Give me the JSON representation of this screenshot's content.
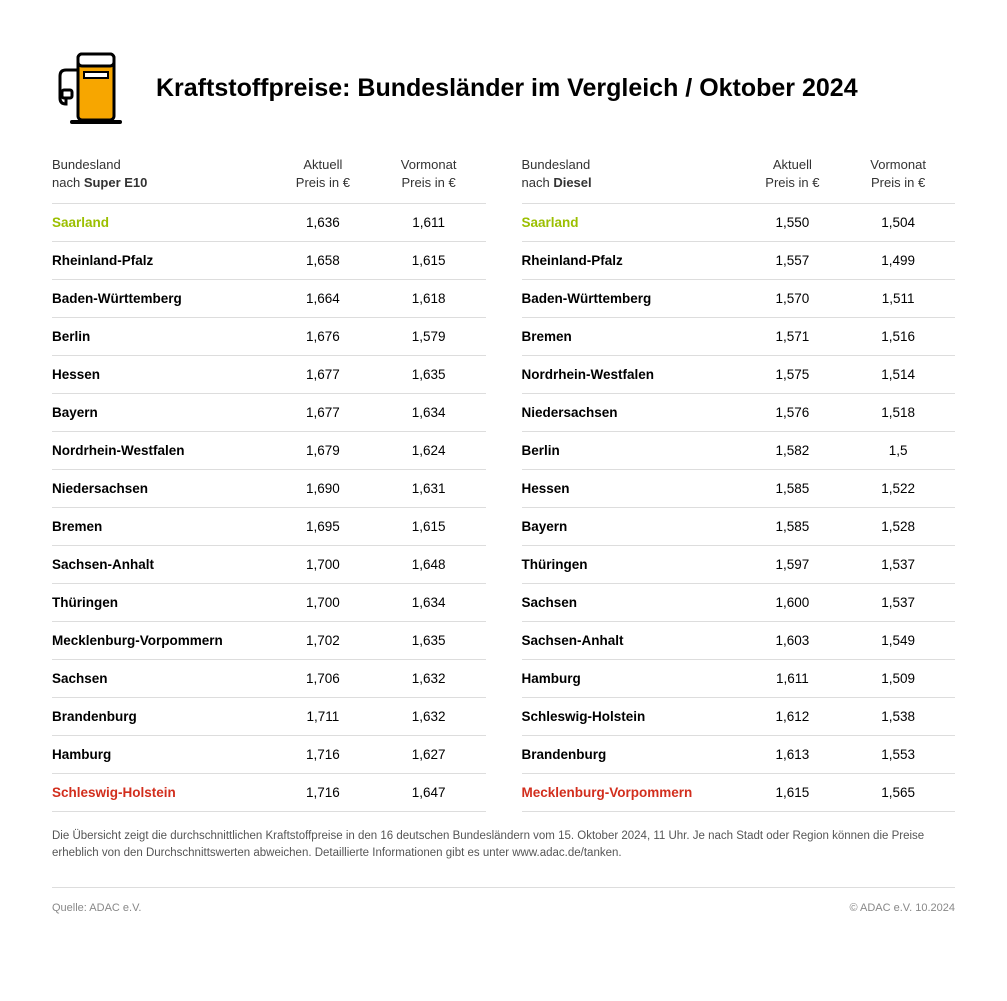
{
  "title": "Kraftstoffpreise: Bundesländer im Vergleich / Oktober 2024",
  "colors": {
    "best": "#9bbf00",
    "worst": "#d22e1d",
    "icon_fill": "#f7a600",
    "icon_stroke": "#000000",
    "row_border": "#dddddd",
    "text": "#000000",
    "muted": "#888888"
  },
  "columns": {
    "state_label_line1": "Bundesland",
    "state_label_line2_prefix": "nach ",
    "current_line1": "Aktuell",
    "current_line2": "Preis in €",
    "prev_line1": "Vormonat",
    "prev_line2": "Preis in €"
  },
  "tables": [
    {
      "fuel": "Super E10",
      "rows": [
        {
          "state": "Saarland",
          "current": "1,636",
          "prev": "1,611",
          "flag": "best"
        },
        {
          "state": "Rheinland-Pfalz",
          "current": "1,658",
          "prev": "1,615",
          "flag": ""
        },
        {
          "state": "Baden-Württemberg",
          "current": "1,664",
          "prev": "1,618",
          "flag": ""
        },
        {
          "state": "Berlin",
          "current": "1,676",
          "prev": "1,579",
          "flag": ""
        },
        {
          "state": "Hessen",
          "current": "1,677",
          "prev": "1,635",
          "flag": ""
        },
        {
          "state": "Bayern",
          "current": "1,677",
          "prev": "1,634",
          "flag": ""
        },
        {
          "state": "Nordrhein-Westfalen",
          "current": "1,679",
          "prev": "1,624",
          "flag": ""
        },
        {
          "state": "Niedersachsen",
          "current": "1,690",
          "prev": "1,631",
          "flag": ""
        },
        {
          "state": "Bremen",
          "current": "1,695",
          "prev": "1,615",
          "flag": ""
        },
        {
          "state": "Sachsen-Anhalt",
          "current": "1,700",
          "prev": "1,648",
          "flag": ""
        },
        {
          "state": "Thüringen",
          "current": "1,700",
          "prev": "1,634",
          "flag": ""
        },
        {
          "state": "Mecklenburg-Vorpommern",
          "current": "1,702",
          "prev": "1,635",
          "flag": ""
        },
        {
          "state": "Sachsen",
          "current": "1,706",
          "prev": "1,632",
          "flag": ""
        },
        {
          "state": "Brandenburg",
          "current": "1,711",
          "prev": "1,632",
          "flag": ""
        },
        {
          "state": "Hamburg",
          "current": "1,716",
          "prev": "1,627",
          "flag": ""
        },
        {
          "state": "Schleswig-Holstein",
          "current": "1,716",
          "prev": "1,647",
          "flag": "worst"
        }
      ]
    },
    {
      "fuel": "Diesel",
      "rows": [
        {
          "state": "Saarland",
          "current": "1,550",
          "prev": "1,504",
          "flag": "best"
        },
        {
          "state": "Rheinland-Pfalz",
          "current": "1,557",
          "prev": "1,499",
          "flag": ""
        },
        {
          "state": "Baden-Württemberg",
          "current": "1,570",
          "prev": "1,511",
          "flag": ""
        },
        {
          "state": "Bremen",
          "current": "1,571",
          "prev": "1,516",
          "flag": ""
        },
        {
          "state": "Nordrhein-Westfalen",
          "current": "1,575",
          "prev": "1,514",
          "flag": ""
        },
        {
          "state": "Niedersachsen",
          "current": "1,576",
          "prev": "1,518",
          "flag": ""
        },
        {
          "state": "Berlin",
          "current": "1,582",
          "prev": "1,5",
          "flag": ""
        },
        {
          "state": "Hessen",
          "current": "1,585",
          "prev": "1,522",
          "flag": ""
        },
        {
          "state": "Bayern",
          "current": "1,585",
          "prev": "1,528",
          "flag": ""
        },
        {
          "state": "Thüringen",
          "current": "1,597",
          "prev": "1,537",
          "flag": ""
        },
        {
          "state": "Sachsen",
          "current": "1,600",
          "prev": "1,537",
          "flag": ""
        },
        {
          "state": "Sachsen-Anhalt",
          "current": "1,603",
          "prev": "1,549",
          "flag": ""
        },
        {
          "state": "Hamburg",
          "current": "1,611",
          "prev": "1,509",
          "flag": ""
        },
        {
          "state": "Schleswig-Holstein",
          "current": "1,612",
          "prev": "1,538",
          "flag": ""
        },
        {
          "state": "Brandenburg",
          "current": "1,613",
          "prev": "1,553",
          "flag": ""
        },
        {
          "state": "Mecklenburg-Vorpommern",
          "current": "1,615",
          "prev": "1,565",
          "flag": "worst"
        }
      ]
    }
  ],
  "footnote": "Die Übersicht zeigt die durchschnittlichen Kraftstoffpreise in den 16 deutschen Bundesländern vom 15. Oktober 2024, 11 Uhr. Je nach Stadt oder Region können die Preise erheblich von den Durchschnittswerten abweichen. Detaillierte Informationen gibt es unter www.adac.de/tanken.",
  "source": "Quelle: ADAC e.V.",
  "copyright": "© ADAC e.V. 10.2024"
}
